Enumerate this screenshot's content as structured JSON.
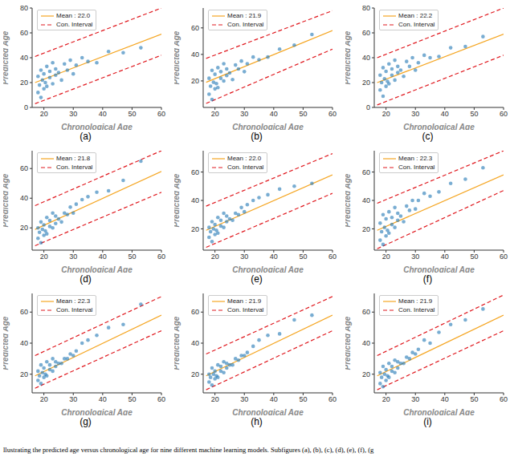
{
  "chart_data": [
    {
      "type": "scatter",
      "label": "(a)",
      "x_label": "Chronological Age",
      "y_label": "Predicted Age",
      "xlim": [
        16,
        60
      ],
      "xticks": [
        20,
        30,
        40,
        50,
        60
      ],
      "ylim": [
        0,
        80
      ],
      "yticks": [
        0,
        20,
        40,
        60,
        80
      ],
      "grid": false,
      "legend": "upper left",
      "color": "#1f77b4",
      "marker": "circle",
      "x": [
        18,
        18,
        18.5,
        19,
        19,
        19.5,
        20,
        20,
        20.5,
        21,
        21,
        22,
        22,
        23,
        23,
        24,
        24,
        25,
        26,
        27,
        28,
        29,
        30,
        31,
        33,
        35,
        38,
        42,
        47,
        53
      ],
      "values": [
        12,
        25,
        18,
        30,
        8,
        22,
        15,
        27,
        20,
        33,
        17,
        24,
        29,
        19,
        36,
        26,
        31,
        28,
        22,
        35,
        30,
        38,
        27,
        34,
        40,
        37,
        36,
        45,
        44,
        48
      ],
      "series": [
        {
          "name": "Mean : 22.0",
          "color": "#f5a623",
          "line_style": "solid",
          "x": [
            17,
            60
          ],
          "values": [
            20,
            59
          ]
        },
        {
          "name": "Con. Interval",
          "color": "#e0191f",
          "line_style": "dashed",
          "x": [
            17,
            60
          ],
          "values": [
            41,
            80
          ]
        },
        {
          "name": "Con. Interval",
          "color": "#e0191f",
          "line_style": "dashed",
          "x": [
            17,
            60
          ],
          "values": [
            3,
            42
          ]
        }
      ]
    },
    {
      "type": "scatter",
      "label": "(b)",
      "x_label": "Chronological Age",
      "y_label": "Predicted Age",
      "xlim": [
        16,
        60
      ],
      "xticks": [
        20,
        30,
        40,
        50,
        60
      ],
      "ylim": [
        0,
        75
      ],
      "yticks": [
        20,
        40,
        60
      ],
      "grid": false,
      "legend": "upper left",
      "color": "#1f77b4",
      "marker": "circle",
      "x": [
        18,
        18,
        18.5,
        19,
        19,
        19.5,
        20,
        20,
        20.5,
        21,
        21,
        22,
        22,
        23,
        23,
        24,
        24,
        25,
        26,
        27,
        28,
        29,
        30,
        31,
        33,
        35,
        38,
        42,
        47,
        53
      ],
      "values": [
        10,
        22,
        16,
        28,
        6,
        19,
        14,
        25,
        18,
        30,
        15,
        22,
        27,
        20,
        33,
        24,
        29,
        26,
        21,
        32,
        29,
        35,
        27,
        33,
        38,
        36,
        38,
        44,
        47,
        55
      ],
      "series": [
        {
          "name": "Mean : 21.9",
          "color": "#f5a623",
          "line_style": "solid",
          "x": [
            17,
            60
          ],
          "values": [
            19,
            58
          ]
        },
        {
          "name": "Con. Interval",
          "color": "#e0191f",
          "line_style": "dashed",
          "x": [
            17,
            60
          ],
          "values": [
            37,
            73
          ]
        },
        {
          "name": "Con. Interval",
          "color": "#e0191f",
          "line_style": "dashed",
          "x": [
            17,
            60
          ],
          "values": [
            3,
            44
          ]
        }
      ]
    },
    {
      "type": "scatter",
      "label": "(c)",
      "x_label": "Chronological Age",
      "y_label": "Predicted Age",
      "xlim": [
        16,
        60
      ],
      "xticks": [
        20,
        30,
        40,
        50,
        60
      ],
      "ylim": [
        0,
        80
      ],
      "yticks": [
        0,
        20,
        40,
        60,
        80
      ],
      "grid": false,
      "legend": "upper left",
      "color": "#1f77b4",
      "marker": "circle",
      "x": [
        18,
        18,
        18.5,
        19,
        19,
        19.5,
        20,
        20,
        20.5,
        21,
        21,
        22,
        22,
        23,
        23,
        24,
        24,
        25,
        26,
        27,
        28,
        29,
        30,
        31,
        33,
        35,
        38,
        42,
        47,
        53
      ],
      "values": [
        14,
        26,
        20,
        32,
        9,
        23,
        17,
        29,
        21,
        35,
        19,
        26,
        31,
        22,
        38,
        28,
        33,
        30,
        25,
        37,
        33,
        40,
        30,
        36,
        42,
        40,
        41,
        48,
        49,
        57
      ],
      "series": [
        {
          "name": "Mean : 22.2",
          "color": "#f5a623",
          "line_style": "solid",
          "x": [
            17,
            60
          ],
          "values": [
            20,
            59
          ]
        },
        {
          "name": "Con. Interval",
          "color": "#e0191f",
          "line_style": "dashed",
          "x": [
            17,
            60
          ],
          "values": [
            40,
            80
          ]
        },
        {
          "name": "Con. Interval",
          "color": "#e0191f",
          "line_style": "dashed",
          "x": [
            17,
            60
          ],
          "values": [
            2,
            42
          ]
        }
      ]
    },
    {
      "type": "scatter",
      "label": "(d)",
      "x_label": "Chronological Age",
      "y_label": "Predicted Age",
      "xlim": [
        16,
        60
      ],
      "xticks": [
        20,
        30,
        40,
        50,
        60
      ],
      "ylim": [
        5,
        72
      ],
      "yticks": [
        20,
        40,
        60
      ],
      "grid": false,
      "legend": "upper left",
      "color": "#1f77b4",
      "marker": "circle",
      "x": [
        18,
        18,
        18.5,
        19,
        19,
        19.5,
        20,
        20,
        20.5,
        21,
        21,
        22,
        22,
        23,
        23,
        24,
        24,
        25,
        26,
        27,
        28,
        29,
        30,
        31,
        33,
        35,
        38,
        42,
        47,
        53
      ],
      "values": [
        13,
        20,
        17,
        24,
        10,
        19,
        15,
        22,
        18,
        27,
        16,
        21,
        25,
        20,
        30,
        23,
        28,
        26,
        24,
        30,
        29,
        34,
        30,
        36,
        39,
        41,
        44,
        45,
        52,
        65
      ],
      "series": [
        {
          "name": "Mean : 21.8",
          "color": "#f5a623",
          "line_style": "solid",
          "x": [
            17,
            60
          ],
          "values": [
            19,
            58
          ]
        },
        {
          "name": "Con. Interval",
          "color": "#e0191f",
          "line_style": "dashed",
          "x": [
            17,
            60
          ],
          "values": [
            35,
            72
          ]
        },
        {
          "name": "Con. Interval",
          "color": "#e0191f",
          "line_style": "dashed",
          "x": [
            17,
            60
          ],
          "values": [
            8,
            44
          ]
        }
      ]
    },
    {
      "type": "scatter",
      "label": "(e)",
      "x_label": "Chronological Age",
      "y_label": "Predicted Age",
      "xlim": [
        16,
        60
      ],
      "xticks": [
        20,
        30,
        40,
        50,
        60
      ],
      "ylim": [
        5,
        75
      ],
      "yticks": [
        20,
        40,
        60
      ],
      "grid": false,
      "legend": "upper left",
      "color": "#1f77b4",
      "marker": "circle",
      "x": [
        18,
        18,
        18.5,
        19,
        19,
        19.5,
        20,
        20,
        20.5,
        21,
        21,
        22,
        22,
        23,
        23,
        24,
        24,
        25,
        26,
        27,
        28,
        29,
        30,
        31,
        33,
        35,
        38,
        42,
        47,
        53
      ],
      "values": [
        14,
        21,
        18,
        25,
        11,
        20,
        16,
        23,
        19,
        28,
        17,
        22,
        26,
        21,
        31,
        25,
        29,
        27,
        26,
        31,
        30,
        35,
        32,
        37,
        40,
        42,
        44,
        48,
        50,
        52
      ],
      "series": [
        {
          "name": "Mean : 22.0",
          "color": "#f5a623",
          "line_style": "solid",
          "x": [
            17,
            60
          ],
          "values": [
            19,
            58
          ]
        },
        {
          "name": "Con. Interval",
          "color": "#e0191f",
          "line_style": "dashed",
          "x": [
            17,
            60
          ],
          "values": [
            36,
            73
          ]
        },
        {
          "name": "Con. Interval",
          "color": "#e0191f",
          "line_style": "dashed",
          "x": [
            17,
            60
          ],
          "values": [
            7,
            45
          ]
        }
      ]
    },
    {
      "type": "scatter",
      "label": "(f)",
      "x_label": "Chronological Age",
      "y_label": "Predicted Age",
      "xlim": [
        16,
        60
      ],
      "xticks": [
        20,
        30,
        40,
        50,
        60
      ],
      "ylim": [
        5,
        75
      ],
      "yticks": [
        20,
        40,
        60
      ],
      "grid": false,
      "legend": "upper left",
      "color": "#1f77b4",
      "marker": "circle",
      "x": [
        18,
        18,
        18.5,
        19,
        19,
        19.5,
        20,
        20,
        20.5,
        21,
        21,
        22,
        22,
        23,
        23,
        24,
        24,
        25,
        26,
        27,
        28,
        29,
        30,
        31,
        33,
        35,
        38,
        42,
        47,
        53
      ],
      "values": [
        12,
        24,
        18,
        30,
        9,
        21,
        15,
        27,
        19,
        32,
        17,
        23,
        28,
        21,
        35,
        26,
        31,
        29,
        25,
        36,
        33,
        40,
        34,
        40,
        45,
        43,
        46,
        52,
        55,
        63
      ],
      "series": [
        {
          "name": "Mean : 22.3",
          "color": "#f5a623",
          "line_style": "solid",
          "x": [
            17,
            60
          ],
          "values": [
            19,
            58
          ]
        },
        {
          "name": "Con. Interval",
          "color": "#e0191f",
          "line_style": "dashed",
          "x": [
            17,
            60
          ],
          "values": [
            38,
            75
          ]
        },
        {
          "name": "Con. Interval",
          "color": "#e0191f",
          "line_style": "dashed",
          "x": [
            17,
            60
          ],
          "values": [
            6,
            47
          ]
        }
      ]
    },
    {
      "type": "scatter",
      "label": "(g)",
      "x_label": "Chronological Age",
      "y_label": "Predicted Age",
      "xlim": [
        16,
        60
      ],
      "xticks": [
        20,
        30,
        40,
        50,
        60
      ],
      "ylim": [
        8,
        72
      ],
      "yticks": [
        20,
        40,
        60
      ],
      "grid": false,
      "legend": "upper left",
      "color": "#1f77b4",
      "marker": "circle",
      "x": [
        18,
        18,
        18.5,
        19,
        19,
        19.5,
        20,
        20,
        20.5,
        21,
        21,
        22,
        22,
        23,
        23,
        24,
        24,
        25,
        26,
        27,
        28,
        29,
        30,
        31,
        33,
        35,
        38,
        42,
        47,
        53
      ],
      "values": [
        16,
        22,
        19,
        26,
        14,
        21,
        18,
        24,
        20,
        28,
        19,
        23,
        26,
        22,
        30,
        25,
        28,
        27,
        27,
        30,
        30,
        33,
        32,
        35,
        40,
        42,
        45,
        50,
        52,
        65
      ],
      "series": [
        {
          "name": "Mean : 22.3",
          "color": "#f5a623",
          "line_style": "solid",
          "x": [
            17,
            60
          ],
          "values": [
            19,
            58
          ]
        },
        {
          "name": "Con. Interval",
          "color": "#e0191f",
          "line_style": "dashed",
          "x": [
            17,
            60
          ],
          "values": [
            32,
            70
          ]
        },
        {
          "name": "Con. Interval",
          "color": "#e0191f",
          "line_style": "dashed",
          "x": [
            17,
            60
          ],
          "values": [
            11,
            48
          ]
        }
      ]
    },
    {
      "type": "scatter",
      "label": "(h)",
      "x_label": "Chronological Age",
      "y_label": "Predicted Age",
      "xlim": [
        16,
        60
      ],
      "xticks": [
        20,
        30,
        40,
        50,
        60
      ],
      "ylim": [
        8,
        72
      ],
      "yticks": [
        20,
        40,
        60
      ],
      "grid": false,
      "legend": "upper left",
      "color": "#1f77b4",
      "marker": "circle",
      "x": [
        18,
        18,
        18.5,
        19,
        19,
        19.5,
        20,
        20,
        20.5,
        21,
        21,
        22,
        22,
        23,
        23,
        24,
        24,
        25,
        26,
        27,
        28,
        29,
        30,
        31,
        33,
        35,
        38,
        42,
        47,
        53
      ],
      "values": [
        15,
        20,
        18,
        24,
        13,
        20,
        17,
        22,
        19,
        26,
        18,
        22,
        25,
        21,
        28,
        24,
        27,
        26,
        26,
        30,
        29,
        32,
        32,
        34,
        38,
        42,
        45,
        46,
        55,
        58
      ],
      "series": [
        {
          "name": "Mean : 21.9",
          "color": "#f5a623",
          "line_style": "solid",
          "x": [
            17,
            60
          ],
          "values": [
            19,
            58
          ]
        },
        {
          "name": "Con. Interval",
          "color": "#e0191f",
          "line_style": "dashed",
          "x": [
            17,
            60
          ],
          "values": [
            33,
            70
          ]
        },
        {
          "name": "Con. Interval",
          "color": "#e0191f",
          "line_style": "dashed",
          "x": [
            17,
            60
          ],
          "values": [
            10,
            48
          ]
        }
      ]
    },
    {
      "type": "scatter",
      "label": "(i)",
      "x_label": "Chronological Age",
      "y_label": "Predicted Age",
      "xlim": [
        16,
        60
      ],
      "xticks": [
        20,
        30,
        40,
        50,
        60
      ],
      "ylim": [
        8,
        72
      ],
      "yticks": [
        20,
        40,
        60
      ],
      "grid": false,
      "legend": "upper left",
      "color": "#1f77b4",
      "marker": "circle",
      "x": [
        18,
        18,
        18.5,
        19,
        19,
        19.5,
        20,
        20,
        20.5,
        21,
        21,
        22,
        22,
        23,
        23,
        24,
        24,
        25,
        26,
        27,
        28,
        29,
        30,
        31,
        33,
        35,
        38,
        42,
        47,
        53
      ],
      "values": [
        14,
        21,
        18,
        25,
        12,
        20,
        16,
        23,
        19,
        27,
        18,
        22,
        25,
        21,
        29,
        24,
        28,
        27,
        27,
        31,
        30,
        34,
        33,
        36,
        42,
        40,
        47,
        52,
        55,
        62
      ],
      "series": [
        {
          "name": "Mean : 21.9",
          "color": "#f5a623",
          "line_style": "solid",
          "x": [
            17,
            60
          ],
          "values": [
            19,
            58
          ]
        },
        {
          "name": "Con. Interval",
          "color": "#e0191f",
          "line_style": "dashed",
          "x": [
            17,
            60
          ],
          "values": [
            32,
            71
          ]
        },
        {
          "name": "Con. Interval",
          "color": "#e0191f",
          "line_style": "dashed",
          "x": [
            17,
            60
          ],
          "values": [
            10,
            48
          ]
        }
      ]
    }
  ],
  "caption": "llustrating the predicted age versus chronological age for nine different machine learning models. Subfigures (a), (b), (c), (d), (e), (f), (g"
}
